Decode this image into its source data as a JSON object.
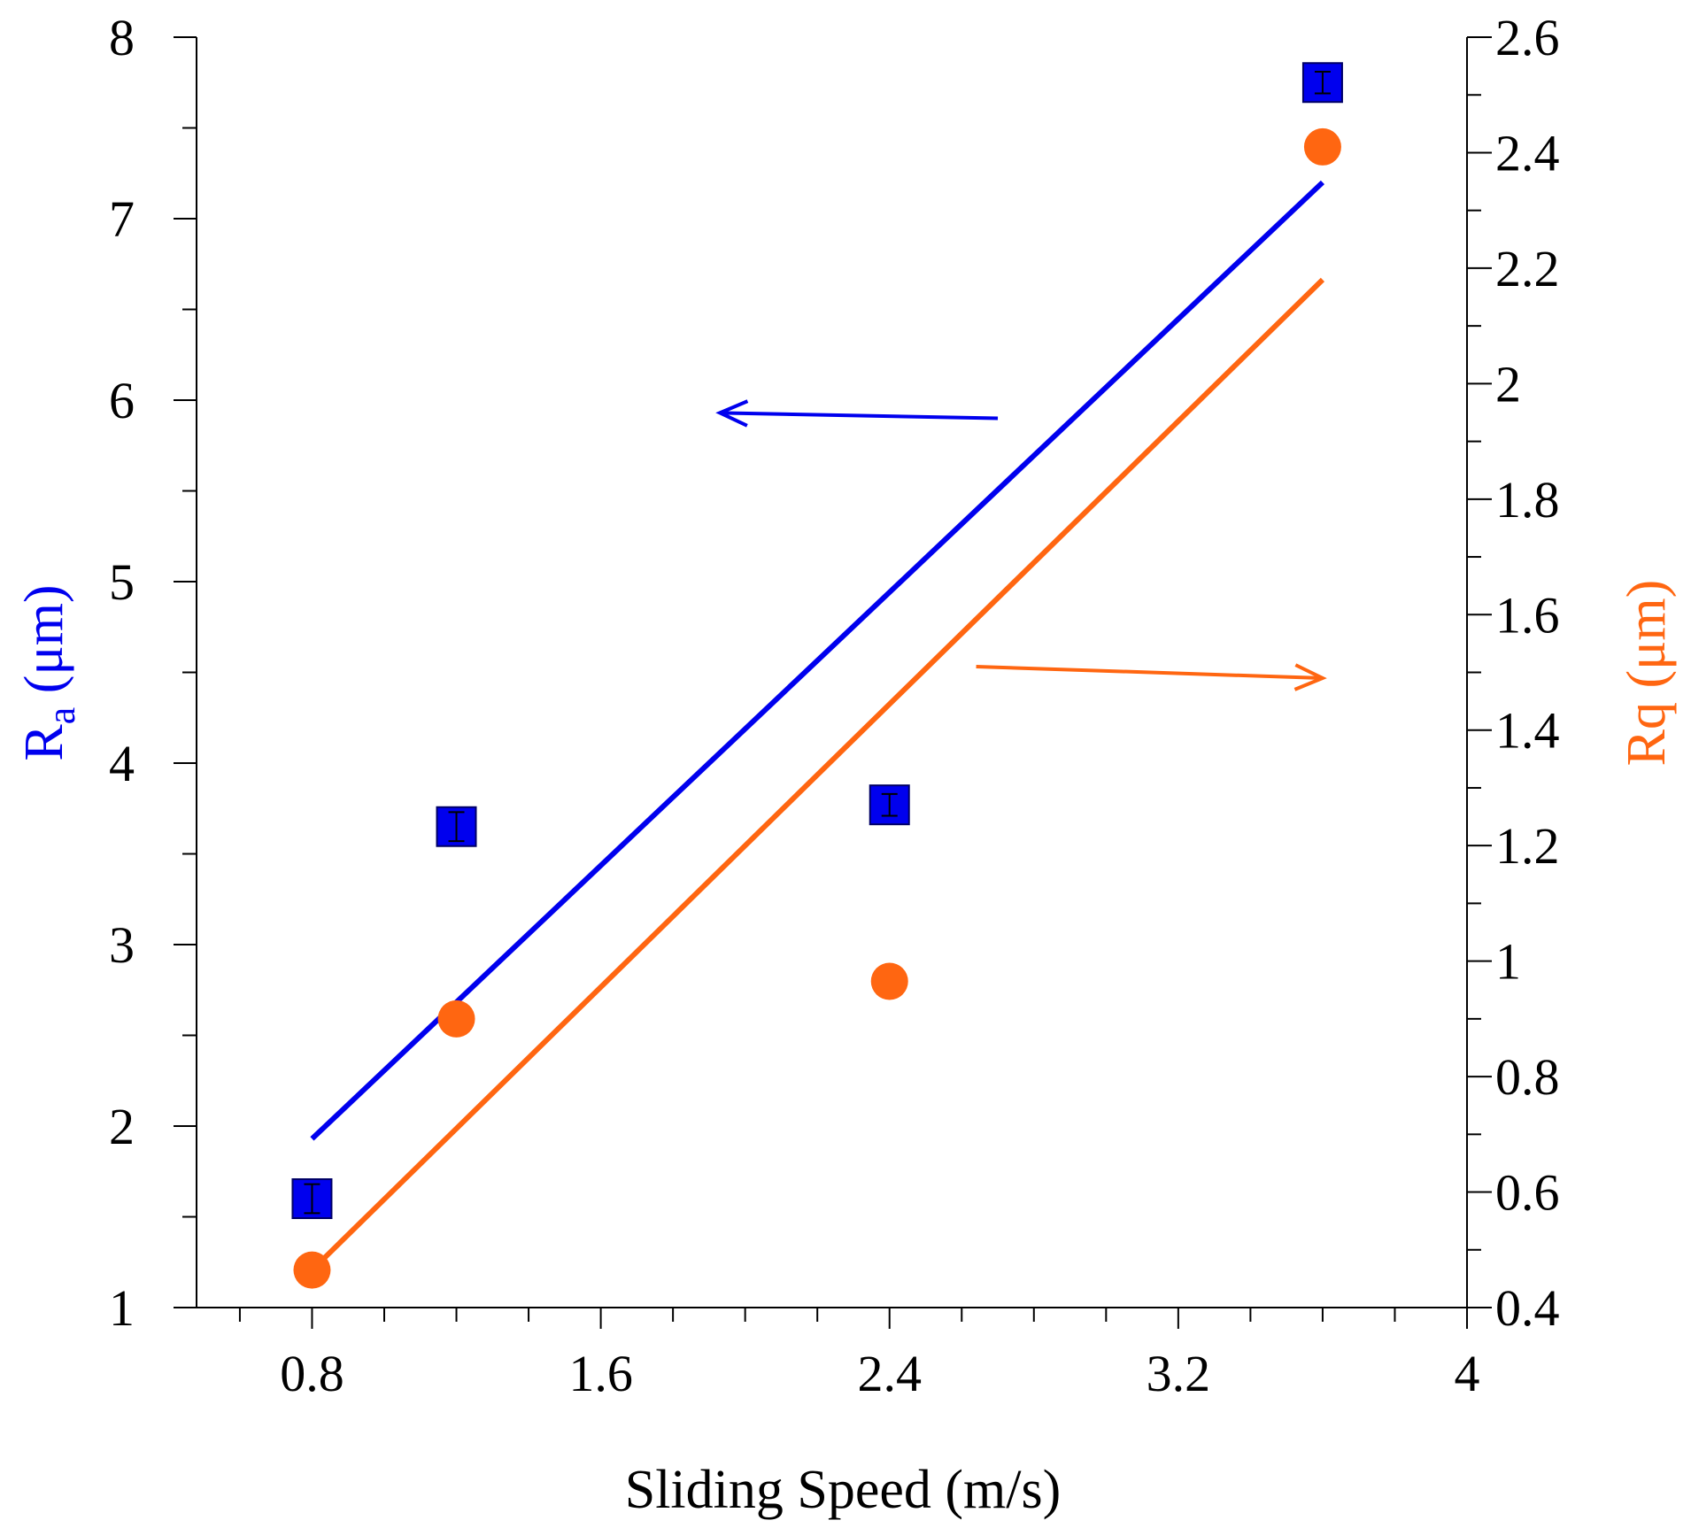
{
  "chart_data": {
    "type": "scatter",
    "xlabel": "Sliding Speed (m/s)",
    "ylabel_left": {
      "main": "R",
      "sub": "a",
      "unit": " (μm)"
    },
    "ylabel_right": "Rq (μm)",
    "xlim": [
      0.48,
      4.0
    ],
    "ylim_left": [
      1,
      8
    ],
    "ylim_right": [
      0.4,
      2.6
    ],
    "x_ticks": [
      0.8,
      1.6,
      2.4,
      3.2,
      4
    ],
    "x_tick_labels": [
      "0.8",
      "1.6",
      "2.4",
      "3.2",
      "4"
    ],
    "y_left_ticks": [
      1,
      2,
      3,
      4,
      5,
      6,
      7,
      8
    ],
    "y_left_tick_labels": [
      "1",
      "2",
      "3",
      "4",
      "5",
      "6",
      "7",
      "8"
    ],
    "y_right_ticks": [
      0.4,
      0.6,
      0.8,
      1.0,
      1.2,
      1.4,
      1.6,
      1.8,
      2.0,
      2.2,
      2.4,
      2.6
    ],
    "y_right_tick_labels": [
      "0.4",
      "0.6",
      "0.8",
      "1",
      "1.2",
      "1.4",
      "1.6",
      "1.8",
      "2",
      "2.2",
      "2.4",
      "2.6"
    ],
    "series": [
      {
        "name": "Ra",
        "axis": "left",
        "marker": "square",
        "color": "#0000ee",
        "x": [
          0.8,
          1.2,
          2.4,
          3.6
        ],
        "y": [
          1.6,
          3.65,
          3.77,
          7.75
        ],
        "error": [
          0.08,
          0.08,
          0.06,
          0.06
        ],
        "fit": {
          "x": [
            0.8,
            3.6
          ],
          "y": [
            1.93,
            7.2
          ]
        }
      },
      {
        "name": "Rq",
        "axis": "right",
        "marker": "circle",
        "color": "#ff6611",
        "x": [
          0.8,
          1.2,
          2.4,
          3.6
        ],
        "y": [
          0.465,
          0.9,
          0.965,
          2.41
        ],
        "fit": {
          "x": [
            0.8,
            3.6
          ],
          "y": [
            0.465,
            2.18
          ]
        }
      }
    ],
    "annotations": [
      {
        "type": "arrow",
        "series": "Ra",
        "points_to": "left-axis",
        "color": "#0000ee",
        "from": {
          "x": 2.7,
          "y_axis": "left",
          "y": 5.9
        },
        "to": {
          "x": 1.93,
          "y_axis": "left",
          "y": 5.93
        }
      },
      {
        "type": "arrow",
        "series": "Rq",
        "points_to": "right-axis",
        "color": "#ff6611",
        "from": {
          "x": 2.64,
          "y_axis": "right",
          "y": 1.51
        },
        "to": {
          "x": 3.6,
          "y_axis": "right",
          "y": 1.49
        }
      }
    ]
  }
}
